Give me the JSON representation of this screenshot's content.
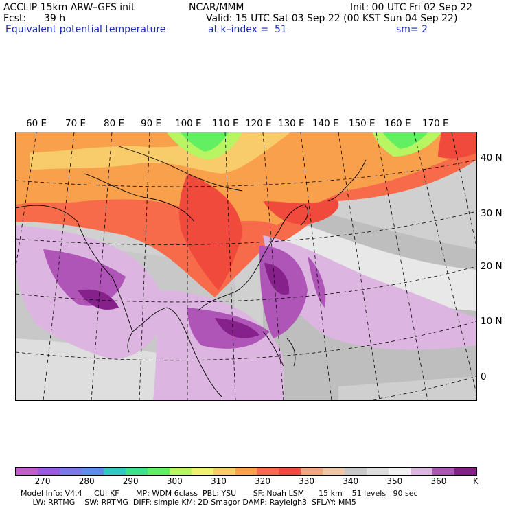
{
  "header": {
    "left1": "ACCLIP 15km ARW–GFS init",
    "center1": "NCAR/MMM",
    "right1": "Init: 00 UTC Fri 02 Sep 22",
    "fcst_label": "Fcst:",
    "fcst_value": "39 h",
    "valid": "Valid: 15 UTC Sat 03 Sep 22 (00 KST Sun 04 Sep 22)",
    "field": "Equivalent potential temperature",
    "level": "at k–index =  51",
    "smooth": "sm= 2"
  },
  "map": {
    "lon_labels": [
      "60 E",
      "70 E",
      "80 E",
      "90 E",
      "100 E",
      "110 E",
      "120 E",
      "130 E",
      "140 E",
      "150 E",
      "160 E",
      "170 E"
    ],
    "lat_labels": [
      "40 N",
      "30 N",
      "20 N",
      "10 N",
      "0"
    ]
  },
  "colorbar": {
    "colors": [
      "#c45ccf",
      "#9a5be0",
      "#7d78e8",
      "#5b8ee8",
      "#33c7c3",
      "#3fe08a",
      "#62ef62",
      "#b8f563",
      "#eef171",
      "#f8cc6a",
      "#f9a04d",
      "#f76b4a",
      "#f04a3c",
      "#f3a57f",
      "#efc6a6",
      "#c8c8c8",
      "#dcdcdc",
      "#f0f0f0",
      "#dcb6e0",
      "#b055b8",
      "#86208a"
    ],
    "ticks": [
      "270",
      "280",
      "290",
      "300",
      "310",
      "320",
      "330",
      "340",
      "350",
      "360"
    ],
    "unit": "K"
  },
  "footer": {
    "line1": "Model Info: V4.4     CU: KF       MP: WDM 6class  PBL: YSU       SF: Noah LSM      15 km    51 levels   90 sec",
    "line2": "     LW: RRTMG    SW: RRTMG  DIFF: simple KM: 2D Smagor DAMP: Rayleigh3  SFLAY: MM5"
  }
}
